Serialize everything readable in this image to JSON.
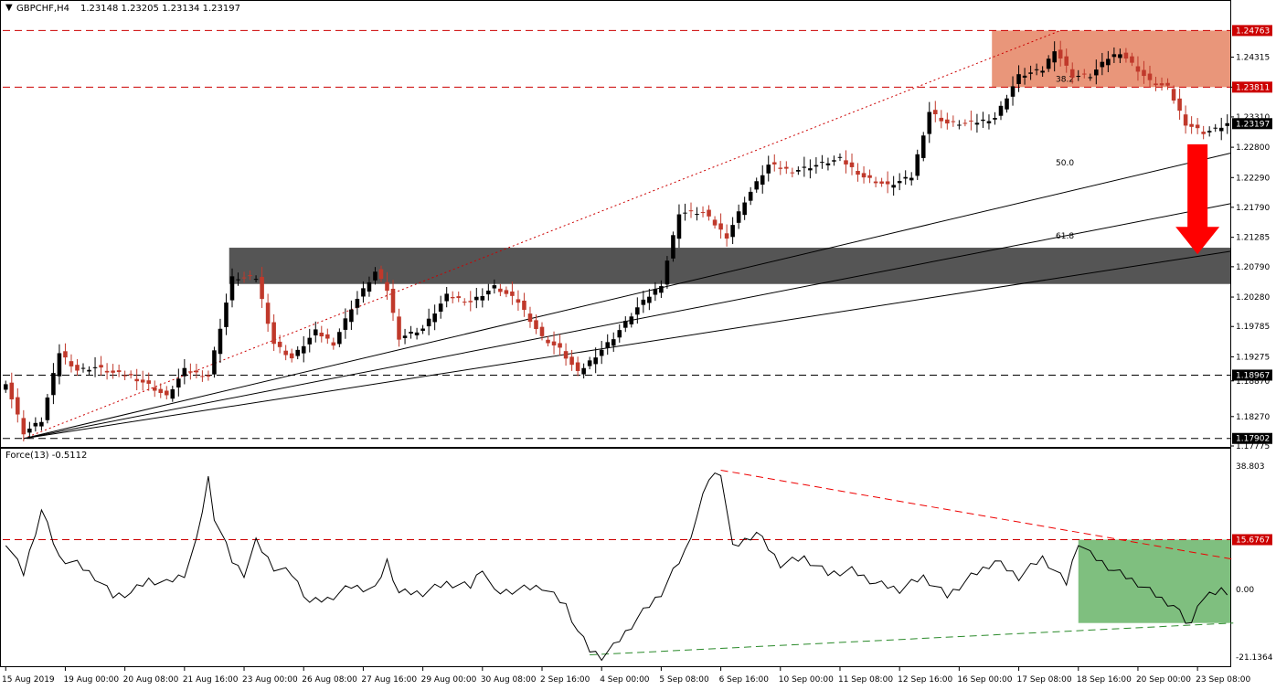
{
  "header": {
    "symbol_label": "GBPCHF,H4",
    "ohlc_text": "1.23148 1.23205 1.23134 1.23197",
    "indicator_label": "Force(13) -0.5112"
  },
  "colors": {
    "bull": "#000000",
    "bear": "#c0392b",
    "resistance_zone": "#e9967a",
    "support_zone": "#555555",
    "indicator_zone": "#7fbf7f",
    "arrow": "#ff0000",
    "price_tag_red": "#cc0000",
    "price_tag_black": "#000000"
  },
  "chart_data": [
    {
      "type": "candlestick",
      "symbol": "GBPCHF",
      "timeframe": "H4",
      "ylim": [
        1.17775,
        1.25
      ],
      "y_ticks": [
        "1.24315",
        "1.23811",
        "1.23310",
        "1.22800",
        "1.22290",
        "1.21790",
        "1.21285",
        "1.20790",
        "1.20280",
        "1.19785",
        "1.19275",
        "1.18870",
        "1.18270",
        "1.17775"
      ],
      "x_ticks": [
        "15 Aug 2019",
        "19 Aug 00:00",
        "20 Aug 08:00",
        "21 Aug 16:00",
        "23 Aug 00:00",
        "26 Aug 08:00",
        "27 Aug 16:00",
        "29 Aug 00:00",
        "30 Aug 08:00",
        "2 Sep 16:00",
        "4 Sep 00:00",
        "5 Sep 08:00",
        "6 Sep 16:00",
        "10 Sep 00:00",
        "11 Sep 08:00",
        "12 Sep 16:00",
        "16 Sep 00:00",
        "17 Sep 08:00",
        "18 Sep 16:00",
        "20 Sep 00:00",
        "23 Sep 08:00"
      ],
      "x_tick_index": [
        0,
        10,
        20,
        30,
        40,
        50,
        60,
        70,
        80,
        90,
        100,
        110,
        120,
        130,
        140,
        150,
        160,
        170,
        180,
        190,
        200
      ],
      "candles_count": 206,
      "price_anchors": [
        [
          0,
          1.1885
        ],
        [
          3,
          1.18
        ],
        [
          6,
          1.182
        ],
        [
          9,
          1.1935
        ],
        [
          12,
          1.1905
        ],
        [
          15,
          1.191
        ],
        [
          18,
          1.19
        ],
        [
          21,
          1.1895
        ],
        [
          24,
          1.188
        ],
        [
          27,
          1.186
        ],
        [
          30,
          1.1905
        ],
        [
          34,
          1.1895
        ],
        [
          38,
          1.206
        ],
        [
          42,
          1.206
        ],
        [
          45,
          1.195
        ],
        [
          48,
          1.1925
        ],
        [
          52,
          1.197
        ],
        [
          55,
          1.195
        ],
        [
          58,
          1.201
        ],
        [
          62,
          1.207
        ],
        [
          64,
          1.204
        ],
        [
          66,
          1.196
        ],
        [
          70,
          1.1975
        ],
        [
          74,
          1.203
        ],
        [
          78,
          1.202
        ],
        [
          82,
          1.2045
        ],
        [
          86,
          1.202
        ],
        [
          90,
          1.196
        ],
        [
          93,
          1.194
        ],
        [
          96,
          1.19
        ],
        [
          98,
          1.192
        ],
        [
          102,
          1.196
        ],
        [
          106,
          1.201
        ],
        [
          110,
          1.205
        ],
        [
          113,
          1.217
        ],
        [
          117,
          1.217
        ],
        [
          121,
          1.213
        ],
        [
          124,
          1.219
        ],
        [
          128,
          1.225
        ],
        [
          132,
          1.224
        ],
        [
          136,
          1.225
        ],
        [
          140,
          1.226
        ],
        [
          144,
          1.223
        ],
        [
          148,
          1.2215
        ],
        [
          152,
          1.223
        ],
        [
          155,
          1.234
        ],
        [
          158,
          1.232
        ],
        [
          162,
          1.232
        ],
        [
          166,
          1.233
        ],
        [
          170,
          1.24
        ],
        [
          174,
          1.241
        ],
        [
          176,
          1.2445
        ],
        [
          179,
          1.24
        ],
        [
          182,
          1.24
        ],
        [
          185,
          1.243
        ],
        [
          187,
          1.244
        ],
        [
          190,
          1.241
        ],
        [
          192,
          1.239
        ],
        [
          195,
          1.238
        ],
        [
          198,
          1.232
        ],
        [
          201,
          1.2305
        ],
        [
          203,
          1.231
        ],
        [
          205,
          1.23197
        ]
      ],
      "horizontal_levels": [
        {
          "value": 1.24763,
          "label": "1.24763",
          "style": "dashed",
          "tag": "red"
        },
        {
          "value": 1.23811,
          "label": "1.23811",
          "style": "dashed",
          "tag": "red"
        },
        {
          "value": 1.18967,
          "label": "1.18967",
          "style": "dashed",
          "tag": "black"
        },
        {
          "value": 1.17902,
          "label": "1.17902",
          "style": "dashed",
          "tag": "black"
        }
      ],
      "current_price": {
        "value": 1.23197,
        "label": "1.23197"
      },
      "resistance_zone": {
        "from_index": 166,
        "to_index": 206,
        "low": 1.23811,
        "high": 1.24763
      },
      "support_zone": {
        "from_index": 38,
        "to_index": 206,
        "low": 1.205,
        "high": 1.2111
      },
      "fib_fan": {
        "origin": {
          "index": 3,
          "price": 1.179
        },
        "anchor": {
          "index": 177,
          "price": 1.24763
        },
        "levels": [
          {
            "label": "38.2",
            "end_price": 1.227
          },
          {
            "label": "50.0",
            "end_price": 1.2185
          },
          {
            "label": "61.8",
            "end_price": 1.2105
          }
        ]
      },
      "arrow": {
        "index": 200,
        "from_price": 1.2285,
        "to_price": 1.21,
        "direction": "down"
      }
    },
    {
      "type": "line",
      "name": "Force(13)",
      "ylim": [
        -23.5,
        40.5
      ],
      "y_ticks": [
        "38.803",
        "15.6767",
        "0.00",
        "-21.1364"
      ],
      "levels": [
        {
          "value": 15.6767,
          "label": "15.6767",
          "style": "dashed",
          "tag": "red"
        },
        {
          "value": 0.0,
          "label": "0.00",
          "style": "plain"
        }
      ],
      "anchors": [
        [
          0,
          15
        ],
        [
          3,
          5
        ],
        [
          6,
          25
        ],
        [
          9,
          10
        ],
        [
          12,
          8
        ],
        [
          15,
          4
        ],
        [
          18,
          -2
        ],
        [
          21,
          -1
        ],
        [
          24,
          3
        ],
        [
          27,
          2
        ],
        [
          30,
          5
        ],
        [
          32,
          15
        ],
        [
          34,
          35
        ],
        [
          35,
          23
        ],
        [
          38,
          9
        ],
        [
          40,
          5
        ],
        [
          42,
          15
        ],
        [
          45,
          7
        ],
        [
          48,
          5
        ],
        [
          51,
          -4
        ],
        [
          54,
          -3
        ],
        [
          58,
          1
        ],
        [
          62,
          0
        ],
        [
          64,
          9
        ],
        [
          66,
          -1
        ],
        [
          70,
          -1
        ],
        [
          74,
          2
        ],
        [
          78,
          1
        ],
        [
          80,
          7
        ],
        [
          82,
          -1
        ],
        [
          86,
          0
        ],
        [
          90,
          1
        ],
        [
          94,
          -5
        ],
        [
          96,
          -13
        ],
        [
          98,
          -19
        ],
        [
          100,
          -21
        ],
        [
          102,
          -18
        ],
        [
          106,
          -9
        ],
        [
          110,
          -1
        ],
        [
          114,
          12
        ],
        [
          116,
          23
        ],
        [
          118,
          35
        ],
        [
          120,
          37
        ],
        [
          122,
          13
        ],
        [
          126,
          18
        ],
        [
          130,
          8
        ],
        [
          134,
          10
        ],
        [
          138,
          5
        ],
        [
          142,
          6
        ],
        [
          146,
          2
        ],
        [
          150,
          0
        ],
        [
          154,
          4
        ],
        [
          158,
          -2
        ],
        [
          162,
          4
        ],
        [
          166,
          9
        ],
        [
          170,
          4
        ],
        [
          174,
          10
        ],
        [
          178,
          2
        ],
        [
          180,
          15
        ],
        [
          182,
          11
        ],
        [
          186,
          6
        ],
        [
          190,
          2
        ],
        [
          194,
          -3
        ],
        [
          196,
          -5
        ],
        [
          198,
          -10
        ],
        [
          199,
          -11
        ],
        [
          200,
          -4
        ],
        [
          202,
          -2
        ],
        [
          204,
          0
        ],
        [
          205,
          -0.5
        ]
      ],
      "green_zone": {
        "from_index": 180,
        "to_index": 206,
        "low": -10.5,
        "high": 15.6767
      },
      "trendline_upper": {
        "from": [
          120,
          37.5
        ],
        "to": [
          206,
          9.5
        ]
      },
      "trendline_lower": {
        "from": [
          98,
          -20.5
        ],
        "to": [
          206,
          -10.5
        ]
      }
    }
  ]
}
